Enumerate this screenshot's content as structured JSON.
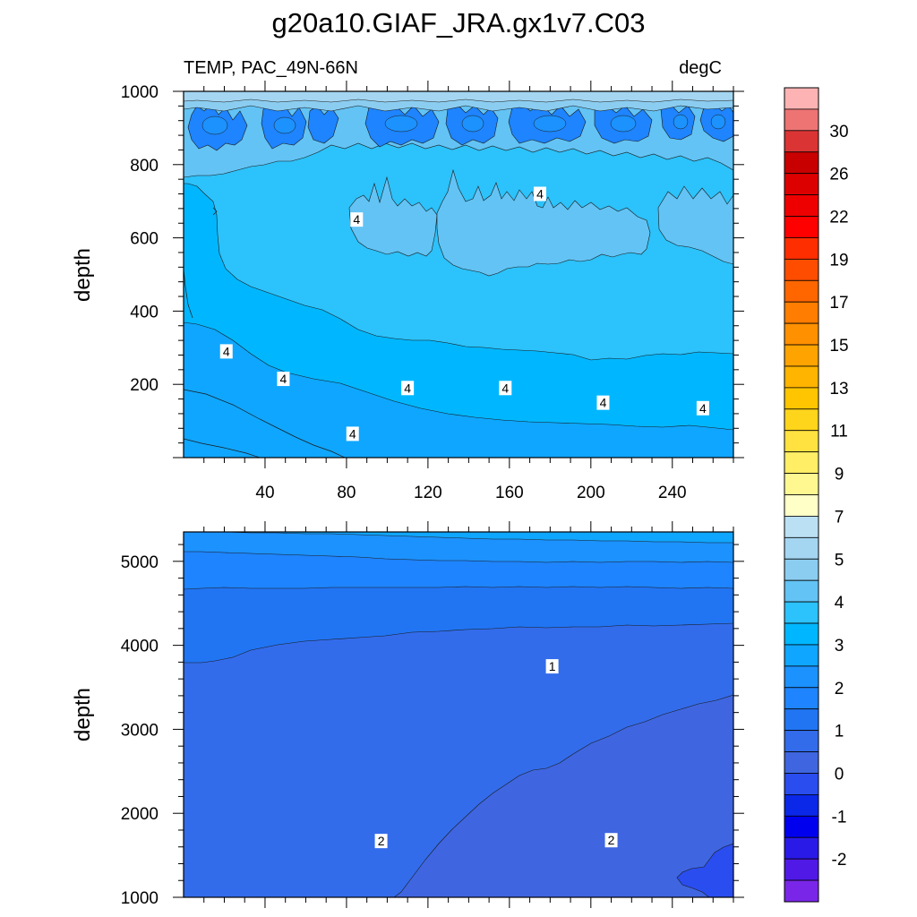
{
  "chart_data": {
    "type": "contour",
    "title": "g20a10.GIAF_JRA.gx1v7.C03",
    "variable_label": "TEMP, PAC_49N-66N",
    "units_label": "degC",
    "panels": [
      {
        "name": "upper",
        "ylabel": "depth",
        "ylim": [
          1000,
          0
        ],
        "xlim": [
          0,
          270
        ],
        "yticks": [
          "200",
          "400",
          "600",
          "800",
          "1000"
        ],
        "xticks": [
          "40",
          "80",
          "120",
          "160",
          "200",
          "240"
        ],
        "contour_labels": [
          {
            "text": "4",
            "x": 83,
            "depth": 65
          },
          {
            "text": "4",
            "x": 49,
            "depth": 215
          },
          {
            "text": "4",
            "x": 110,
            "depth": 190
          },
          {
            "text": "4",
            "x": 158,
            "depth": 190
          },
          {
            "text": "4",
            "x": 206,
            "depth": 150
          },
          {
            "text": "4",
            "x": 255,
            "depth": 135
          },
          {
            "text": "4",
            "x": 21,
            "depth": 290
          },
          {
            "text": "4",
            "x": 85,
            "depth": 650
          },
          {
            "text": "4",
            "x": 175,
            "depth": 720
          }
        ]
      },
      {
        "name": "lower",
        "ylabel": "depth",
        "ylim": [
          5350,
          1000
        ],
        "xlim": [
          0,
          270
        ],
        "yticks": [
          "1000",
          "2000",
          "3000",
          "4000",
          "5000"
        ],
        "contour_labels": [
          {
            "text": "2",
            "x": 97,
            "depth": 1670
          },
          {
            "text": "2",
            "x": 210,
            "depth": 1680
          },
          {
            "text": "1",
            "x": 181,
            "depth": 3750
          }
        ]
      }
    ],
    "colorbar": {
      "labels": [
        "30",
        "26",
        "22",
        "19",
        "17",
        "15",
        "13",
        "11",
        "9",
        "7",
        "5",
        "4",
        "3",
        "2",
        "1",
        "0",
        "-1",
        "-2"
      ],
      "colors": [
        "#fdb3b3",
        "#ee7474",
        "#db3434",
        "#c80000",
        "#dd0000",
        "#ef0000",
        "#ff0000",
        "#ff2e00",
        "#ff4d00",
        "#ff6600",
        "#ff7d00",
        "#ff9000",
        "#ffa300",
        "#ffb400",
        "#ffc500",
        "#ffd51b",
        "#ffe23f",
        "#ffee66",
        "#fff891",
        "#ffffc8",
        "#bbe0f4",
        "#a4d6f2",
        "#8bcdf0",
        "#63c3f4",
        "#2cc2fb",
        "#00b7ff",
        "#0fa6ff",
        "#1c92ff",
        "#1e84ff",
        "#2175f3",
        "#336ceb",
        "#3f66e0",
        "#2a4df0",
        "#0b28e8",
        "#0000ee",
        "#2a1ae8",
        "#5019e6",
        "#7a26e8"
      ]
    },
    "fill_colors": {
      "surface": "#a4d6f2",
      "band_5": "#8bcdf0",
      "band_45": "#63c3f4",
      "band_4": "#2cc2fb",
      "band_35": "#00b7ff",
      "band_3": "#0fa6ff",
      "band_25": "#1c92ff",
      "band_2": "#1e84ff",
      "band_15": "#2175f3",
      "band_1": "#336ceb",
      "band_05": "#3f66e0",
      "band_0": "#2a4df0"
    }
  }
}
